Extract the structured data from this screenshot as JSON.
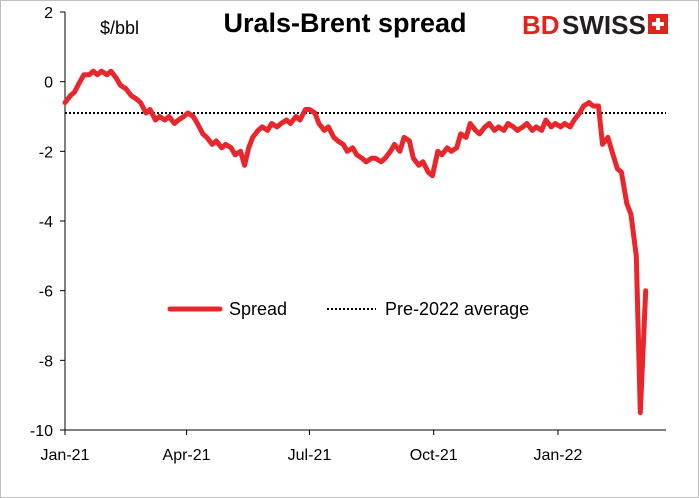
{
  "chart_data": {
    "type": "line",
    "title": "Urals-Brent spread",
    "unit_label": "$/bbl",
    "ylim": [
      -10,
      2
    ],
    "y_ticks": [
      "2",
      "0",
      "-2",
      "-4",
      "-6",
      "-8",
      "-10"
    ],
    "x_range": [
      "2021-01-01",
      "2022-03-22"
    ],
    "x_ticks": [
      {
        "date": "2021-01-01",
        "label": "Jan-21"
      },
      {
        "date": "2021-04-01",
        "label": "Apr-21"
      },
      {
        "date": "2021-07-01",
        "label": "Jul-21"
      },
      {
        "date": "2021-10-01",
        "label": "Oct-21"
      },
      {
        "date": "2022-01-01",
        "label": "Jan-22"
      }
    ],
    "legend_placement": "center",
    "grid": false,
    "series": [
      {
        "name": "Spread",
        "style": "solid",
        "color": "#e8262b",
        "points": [
          [
            "2021-01-01",
            -0.6
          ],
          [
            "2021-01-05",
            -0.4
          ],
          [
            "2021-01-08",
            -0.3
          ],
          [
            "2021-01-12",
            0.0
          ],
          [
            "2021-01-15",
            0.2
          ],
          [
            "2021-01-19",
            0.2
          ],
          [
            "2021-01-22",
            0.3
          ],
          [
            "2021-01-25",
            0.2
          ],
          [
            "2021-01-28",
            0.3
          ],
          [
            "2021-02-01",
            0.2
          ],
          [
            "2021-02-04",
            0.3
          ],
          [
            "2021-02-08",
            0.1
          ],
          [
            "2021-02-11",
            -0.1
          ],
          [
            "2021-02-15",
            -0.2
          ],
          [
            "2021-02-19",
            -0.4
          ],
          [
            "2021-02-23",
            -0.5
          ],
          [
            "2021-02-26",
            -0.6
          ],
          [
            "2021-03-02",
            -0.9
          ],
          [
            "2021-03-05",
            -0.8
          ],
          [
            "2021-03-09",
            -1.1
          ],
          [
            "2021-03-12",
            -1.0
          ],
          [
            "2021-03-16",
            -1.1
          ],
          [
            "2021-03-19",
            -1.0
          ],
          [
            "2021-03-23",
            -1.2
          ],
          [
            "2021-03-26",
            -1.1
          ],
          [
            "2021-03-30",
            -1.0
          ],
          [
            "2021-04-02",
            -0.9
          ],
          [
            "2021-04-06",
            -1.0
          ],
          [
            "2021-04-09",
            -1.2
          ],
          [
            "2021-04-13",
            -1.5
          ],
          [
            "2021-04-16",
            -1.6
          ],
          [
            "2021-04-20",
            -1.8
          ],
          [
            "2021-04-23",
            -1.7
          ],
          [
            "2021-04-27",
            -1.9
          ],
          [
            "2021-04-30",
            -1.8
          ],
          [
            "2021-05-04",
            -1.9
          ],
          [
            "2021-05-07",
            -2.1
          ],
          [
            "2021-05-11",
            -2.0
          ],
          [
            "2021-05-14",
            -2.4
          ],
          [
            "2021-05-17",
            -1.9
          ],
          [
            "2021-05-20",
            -1.6
          ],
          [
            "2021-05-24",
            -1.4
          ],
          [
            "2021-05-27",
            -1.3
          ],
          [
            "2021-05-31",
            -1.4
          ],
          [
            "2021-06-03",
            -1.2
          ],
          [
            "2021-06-07",
            -1.3
          ],
          [
            "2021-06-10",
            -1.2
          ],
          [
            "2021-06-14",
            -1.1
          ],
          [
            "2021-06-17",
            -1.2
          ],
          [
            "2021-06-21",
            -1.0
          ],
          [
            "2021-06-24",
            -1.1
          ],
          [
            "2021-06-28",
            -0.8
          ],
          [
            "2021-07-01",
            -0.8
          ],
          [
            "2021-07-05",
            -0.9
          ],
          [
            "2021-07-08",
            -1.2
          ],
          [
            "2021-07-12",
            -1.4
          ],
          [
            "2021-07-15",
            -1.3
          ],
          [
            "2021-07-19",
            -1.6
          ],
          [
            "2021-07-22",
            -1.7
          ],
          [
            "2021-07-26",
            -1.8
          ],
          [
            "2021-07-29",
            -2.0
          ],
          [
            "2021-08-02",
            -1.9
          ],
          [
            "2021-08-05",
            -2.1
          ],
          [
            "2021-08-09",
            -2.2
          ],
          [
            "2021-08-12",
            -2.3
          ],
          [
            "2021-08-16",
            -2.2
          ],
          [
            "2021-08-19",
            -2.2
          ],
          [
            "2021-08-23",
            -2.3
          ],
          [
            "2021-08-26",
            -2.2
          ],
          [
            "2021-08-30",
            -2.0
          ],
          [
            "2021-09-02",
            -1.8
          ],
          [
            "2021-09-06",
            -2.0
          ],
          [
            "2021-09-09",
            -1.6
          ],
          [
            "2021-09-13",
            -1.7
          ],
          [
            "2021-09-16",
            -2.2
          ],
          [
            "2021-09-20",
            -2.4
          ],
          [
            "2021-09-23",
            -2.3
          ],
          [
            "2021-09-27",
            -2.6
          ],
          [
            "2021-09-30",
            -2.7
          ],
          [
            "2021-10-04",
            -2.0
          ],
          [
            "2021-10-07",
            -2.1
          ],
          [
            "2021-10-11",
            -1.9
          ],
          [
            "2021-10-14",
            -2.0
          ],
          [
            "2021-10-18",
            -1.9
          ],
          [
            "2021-10-21",
            -1.5
          ],
          [
            "2021-10-25",
            -1.6
          ],
          [
            "2021-10-28",
            -1.2
          ],
          [
            "2021-11-01",
            -1.4
          ],
          [
            "2021-11-04",
            -1.5
          ],
          [
            "2021-11-08",
            -1.3
          ],
          [
            "2021-11-11",
            -1.2
          ],
          [
            "2021-11-15",
            -1.4
          ],
          [
            "2021-11-18",
            -1.3
          ],
          [
            "2021-11-22",
            -1.4
          ],
          [
            "2021-11-25",
            -1.2
          ],
          [
            "2021-11-29",
            -1.3
          ],
          [
            "2021-12-02",
            -1.4
          ],
          [
            "2021-12-06",
            -1.3
          ],
          [
            "2021-12-09",
            -1.2
          ],
          [
            "2021-12-13",
            -1.4
          ],
          [
            "2021-12-16",
            -1.3
          ],
          [
            "2021-12-20",
            -1.4
          ],
          [
            "2021-12-23",
            -1.1
          ],
          [
            "2021-12-27",
            -1.3
          ],
          [
            "2021-12-30",
            -1.2
          ],
          [
            "2022-01-03",
            -1.3
          ],
          [
            "2022-01-06",
            -1.2
          ],
          [
            "2022-01-10",
            -1.3
          ],
          [
            "2022-01-13",
            -1.1
          ],
          [
            "2022-01-17",
            -0.9
          ],
          [
            "2022-01-20",
            -0.7
          ],
          [
            "2022-01-24",
            -0.6
          ],
          [
            "2022-01-27",
            -0.7
          ],
          [
            "2022-01-31",
            -0.7
          ],
          [
            "2022-02-03",
            -1.8
          ],
          [
            "2022-02-07",
            -1.6
          ],
          [
            "2022-02-10",
            -2.0
          ],
          [
            "2022-02-14",
            -2.5
          ],
          [
            "2022-02-17",
            -2.6
          ],
          [
            "2022-02-21",
            -3.5
          ],
          [
            "2022-02-24",
            -3.8
          ],
          [
            "2022-02-28",
            -5.0
          ],
          [
            "2022-03-03",
            -9.5
          ],
          [
            "2022-03-07",
            -6.0
          ]
        ]
      },
      {
        "name": "Pre-2022 average",
        "style": "dotted",
        "color": "#000000",
        "points": [
          [
            "2021-01-01",
            -0.9
          ],
          [
            "2022-03-22",
            -0.9
          ]
        ]
      }
    ]
  }
}
